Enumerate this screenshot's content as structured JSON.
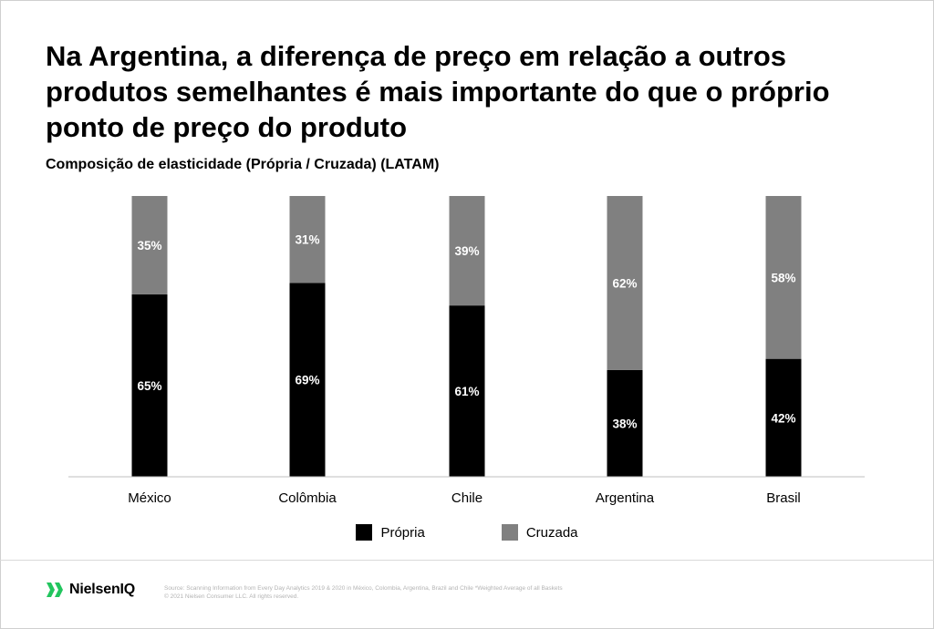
{
  "title": "Na Argentina, a diferença de preço em relação a outros produtos semelhantes é mais importante do que o próprio ponto de preço do produto",
  "subtitle": "Composição de elasticidade (Própria / Cruzada) (LATAM)",
  "chart_data": {
    "type": "bar",
    "stacked": true,
    "categories": [
      "México",
      "Colômbia",
      "Chile",
      "Argentina",
      "Brasil"
    ],
    "series": [
      {
        "name": "Própria",
        "color": "#000000",
        "values": [
          65,
          69,
          61,
          38,
          42
        ],
        "labels": [
          "65%",
          "69%",
          "61%",
          "38%",
          "42%"
        ]
      },
      {
        "name": "Cruzada",
        "color": "#808080",
        "values": [
          35,
          31,
          39,
          62,
          58
        ],
        "labels": [
          "35%",
          "31%",
          "39%",
          "62%",
          "58%"
        ]
      }
    ],
    "ylim": [
      0,
      100
    ],
    "grid": false,
    "legend": "bottom-center"
  },
  "legend": {
    "items": [
      {
        "label": "Própria",
        "color": "#000000"
      },
      {
        "label": "Cruzada",
        "color": "#808080"
      }
    ]
  },
  "footer": {
    "logo_text": "NielsenIQ",
    "logo_color": "#22c55e",
    "source_line1": "Source: Scanning Information from Every Day Analytics 2019 & 2020 in México, Colombia, Argentina, Brazil and Chile    *Weighted Average of all Baskets",
    "source_line2": "© 2021 Nielsen Consumer LLC. All rights reserved."
  }
}
